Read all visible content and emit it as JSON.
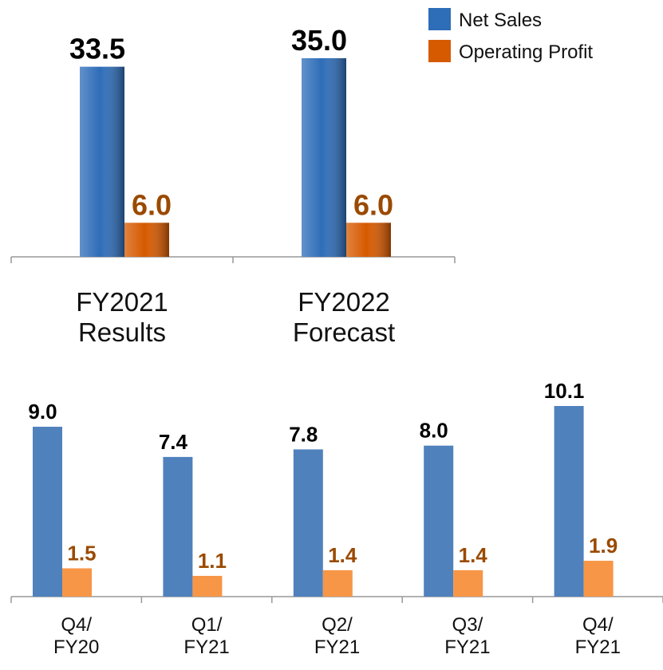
{
  "chart_data": [
    {
      "type": "bar",
      "categories": [
        "FY2021\nResults",
        "FY2022\nForecast"
      ],
      "series": [
        {
          "name": "Net Sales",
          "color": "#2e6db8",
          "values": [
            33.5,
            35.0
          ],
          "value_labels": [
            "33.5",
            "35.0"
          ]
        },
        {
          "name": "Operating Profit",
          "color": "#d65a00",
          "values": [
            6.0,
            6.0
          ],
          "value_labels": [
            "6.0",
            "6.0"
          ]
        }
      ],
      "legend": "top-right"
    },
    {
      "type": "bar",
      "categories": [
        "Q4/\nFY20",
        "Q1/\nFY21",
        "Q2/\nFY21",
        "Q3/\nFY21",
        "Q4/\nFY21"
      ],
      "series": [
        {
          "color": "#4f81bd",
          "values": [
            9.0,
            7.4,
            7.8,
            8.0,
            10.1
          ],
          "value_labels": [
            "9.0",
            "7.4",
            "7.8",
            "8.0",
            "10.1"
          ]
        },
        {
          "color": "#f79646",
          "values": [
            1.5,
            1.1,
            1.4,
            1.4,
            1.9
          ],
          "value_labels": [
            "1.5",
            "1.1",
            "1.4",
            "1.4",
            "1.9"
          ]
        }
      ]
    }
  ]
}
